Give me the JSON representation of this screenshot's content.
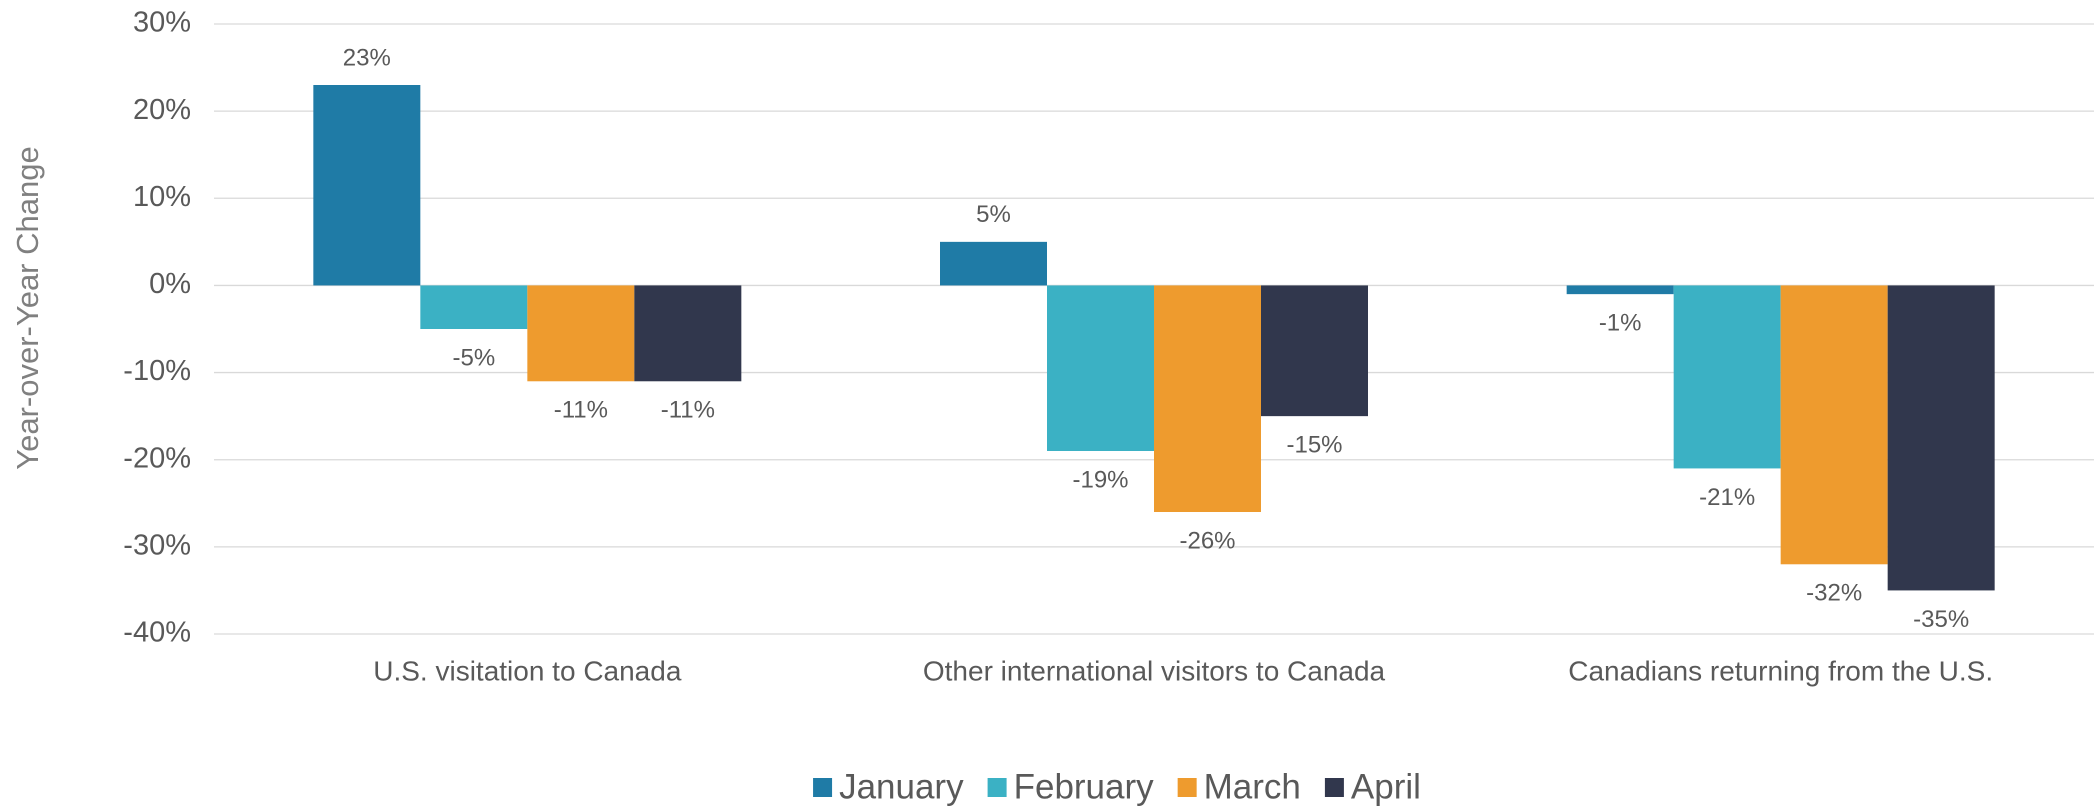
{
  "chart_data": {
    "type": "bar",
    "y_axis_label": "Year-over-Year Change",
    "categories": [
      "U.S. visitation to Canada",
      "Other international visitors to Canada",
      "Canadians returning from the U.S."
    ],
    "series": [
      {
        "name": "January",
        "color": "#1f7ba6",
        "values": [
          23,
          5,
          -1
        ],
        "value_labels": [
          "23%",
          "5%",
          "-1%"
        ]
      },
      {
        "name": "February",
        "color": "#3bb1c4",
        "values": [
          -5,
          -19,
          -21
        ],
        "value_labels": [
          "-5%",
          "-19%",
          "-21%"
        ]
      },
      {
        "name": "March",
        "color": "#ee9b2e",
        "values": [
          -11,
          -26,
          -32
        ],
        "value_labels": [
          "-11%",
          "-26%",
          "-32%"
        ]
      },
      {
        "name": "April",
        "color": "#31374d",
        "values": [
          -11,
          -15,
          -35
        ],
        "value_labels": [
          "-11%",
          "-15%",
          "-35%"
        ]
      }
    ],
    "ylim": [
      -40,
      30
    ],
    "yticks": [
      {
        "value": -40,
        "label": "-40%"
      },
      {
        "value": -30,
        "label": "-30%"
      },
      {
        "value": -20,
        "label": "-20%"
      },
      {
        "value": -10,
        "label": "-10%"
      },
      {
        "value": 0,
        "label": "0%"
      },
      {
        "value": 10,
        "label": "10%"
      },
      {
        "value": 20,
        "label": "20%"
      },
      {
        "value": 30,
        "label": "30%"
      }
    ],
    "grid": true,
    "legend": "bottom"
  }
}
